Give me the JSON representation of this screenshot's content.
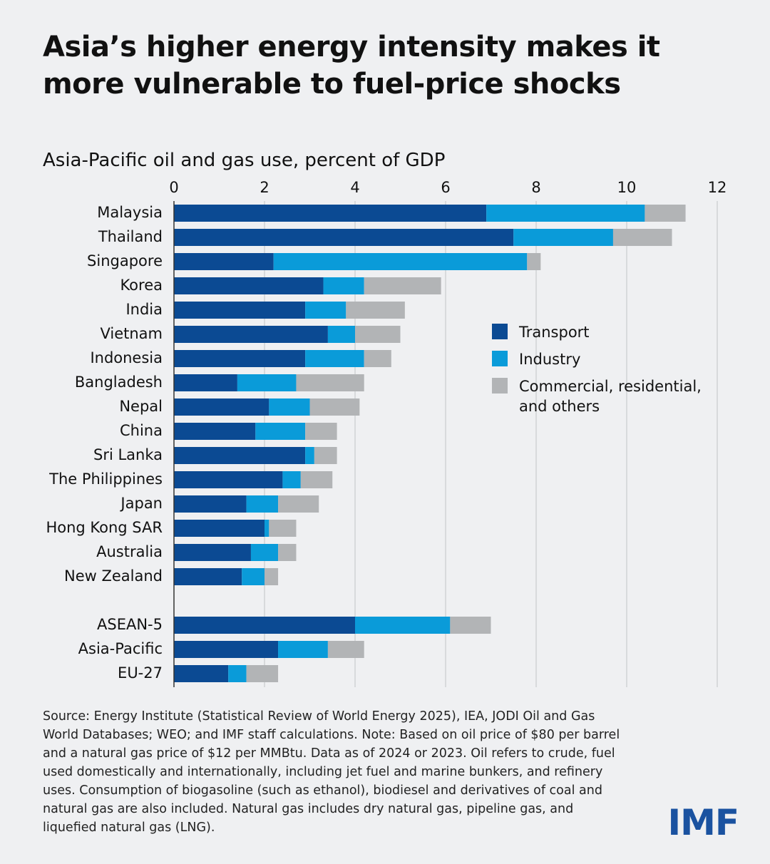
{
  "chart_data": {
    "type": "bar",
    "orientation": "horizontal",
    "stacked": true,
    "title": "Asia’s higher energy intensity makes it more vulnerable to fuel-price shocks",
    "subtitle": "Asia-Pacific oil and gas use, percent of GDP",
    "categories": [
      "Malaysia",
      "Thailand",
      "Singapore",
      "Korea",
      "India",
      "Vietnam",
      "Indonesia",
      "Bangladesh",
      "Nepal",
      "China",
      "Sri Lanka",
      "The Philippines",
      "Japan",
      "Hong Kong SAR",
      "Australia",
      "New Zealand",
      null,
      "ASEAN-5",
      "Asia-Pacific",
      "EU-27"
    ],
    "series": [
      {
        "name": "Transport",
        "color": "#0b4a93",
        "values": [
          6.9,
          7.5,
          2.2,
          3.3,
          2.9,
          3.4,
          2.9,
          1.4,
          2.1,
          1.8,
          2.9,
          2.4,
          1.6,
          2.0,
          1.7,
          1.5,
          null,
          4.0,
          2.3,
          1.2
        ]
      },
      {
        "name": "Industry",
        "color": "#0a9bd9",
        "values": [
          3.5,
          2.2,
          5.6,
          0.9,
          0.9,
          0.6,
          1.3,
          1.3,
          0.9,
          1.1,
          0.2,
          0.4,
          0.7,
          0.1,
          0.6,
          0.5,
          null,
          2.1,
          1.1,
          0.4
        ]
      },
      {
        "name": "Commercial, residential, and others",
        "color": "#b2b4b6",
        "values": [
          0.9,
          1.3,
          0.3,
          1.7,
          1.3,
          1.0,
          0.6,
          1.5,
          1.1,
          0.7,
          0.5,
          0.7,
          0.9,
          0.6,
          0.4,
          0.3,
          null,
          0.9,
          0.8,
          0.7
        ]
      }
    ],
    "xlim": [
      0,
      12
    ],
    "xticks": [
      0,
      2,
      4,
      6,
      8,
      10,
      12
    ],
    "grid": true,
    "legend": "right",
    "note": "Source: Energy Institute (Statistical Review of World Energy 2025), IEA, JODI Oil and Gas World Databases; WEO; and IMF staff calculations. Note: Based on oil price of $80 per barrel and a natural gas price of $12 per MMBtu. Data as of 2024 or 2023.  Oil refers to crude, fuel used domestically and internationally, including jet fuel and marine bunkers, and refinery uses. Consumption of biogasoline (such as ethanol), biodiesel and derivatives of coal and natural gas are also included. Natural gas includes dry natural gas, pipeline gas, and liquefied natural gas (LNG).",
    "logo": "IMF"
  }
}
